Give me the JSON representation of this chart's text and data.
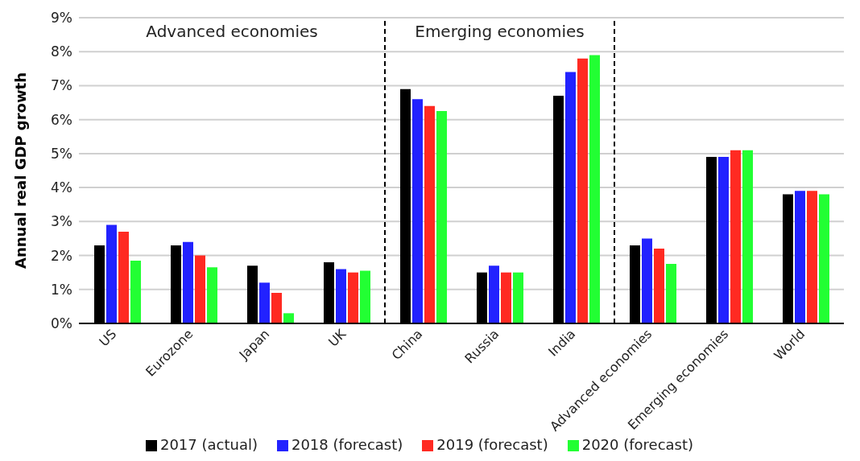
{
  "chart_data": {
    "type": "bar",
    "ylabel": "Annual real GDP growth",
    "categories": [
      "US",
      "Eurozone",
      "Japan",
      "UK",
      "China",
      "Russia",
      "India",
      "Advanced economies",
      "Emerging economies",
      "World"
    ],
    "series": [
      {
        "name": "2017 (actual)",
        "color": "#000000",
        "values": [
          2.3,
          2.3,
          1.7,
          1.8,
          6.9,
          1.5,
          6.7,
          2.3,
          4.9,
          3.8
        ]
      },
      {
        "name": "2018 (forecast)",
        "color": "#2222ff",
        "values": [
          2.9,
          2.4,
          1.2,
          1.6,
          6.6,
          1.7,
          7.4,
          2.5,
          4.9,
          3.9
        ]
      },
      {
        "name": "2019 (forecast)",
        "color": "#ff2a22",
        "values": [
          2.7,
          2.0,
          0.9,
          1.5,
          6.4,
          1.5,
          7.8,
          2.2,
          5.1,
          3.9
        ]
      },
      {
        "name": "2020 (forecast)",
        "color": "#22ff33",
        "values": [
          1.85,
          1.65,
          0.3,
          1.55,
          6.25,
          1.5,
          7.9,
          1.75,
          5.1,
          3.8
        ]
      }
    ],
    "ylim": [
      0,
      9
    ],
    "yticks": [
      {
        "value": 0,
        "label": "0%"
      },
      {
        "value": 1,
        "label": "1%"
      },
      {
        "value": 2,
        "label": "2%"
      },
      {
        "value": 3,
        "label": "3%"
      },
      {
        "value": 4,
        "label": "4%"
      },
      {
        "value": 5,
        "label": "5%"
      },
      {
        "value": 6,
        "label": "6%"
      },
      {
        "value": 7,
        "label": "7%"
      },
      {
        "value": 8,
        "label": "8%"
      },
      {
        "value": 9,
        "label": "9%"
      }
    ],
    "annotations": [
      "Advanced economies",
      "Emerging economies"
    ],
    "grid": "y",
    "legend": "bottom"
  }
}
